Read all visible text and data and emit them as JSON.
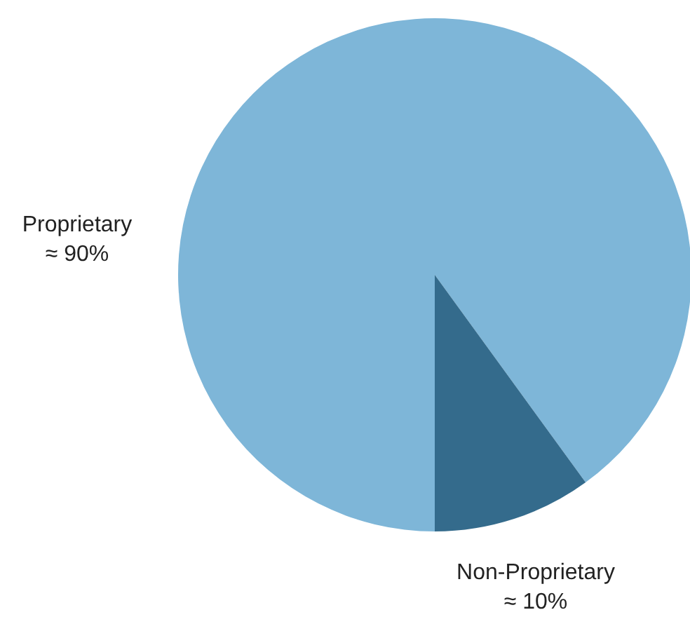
{
  "chart_data": {
    "type": "pie",
    "categories": [
      "Proprietary",
      "Non-Proprietary"
    ],
    "values": [
      90,
      10
    ],
    "colors": [
      "#7eb6d8",
      "#346b8c"
    ],
    "value_labels": [
      "≈ 90%",
      "≈ 10%"
    ]
  }
}
